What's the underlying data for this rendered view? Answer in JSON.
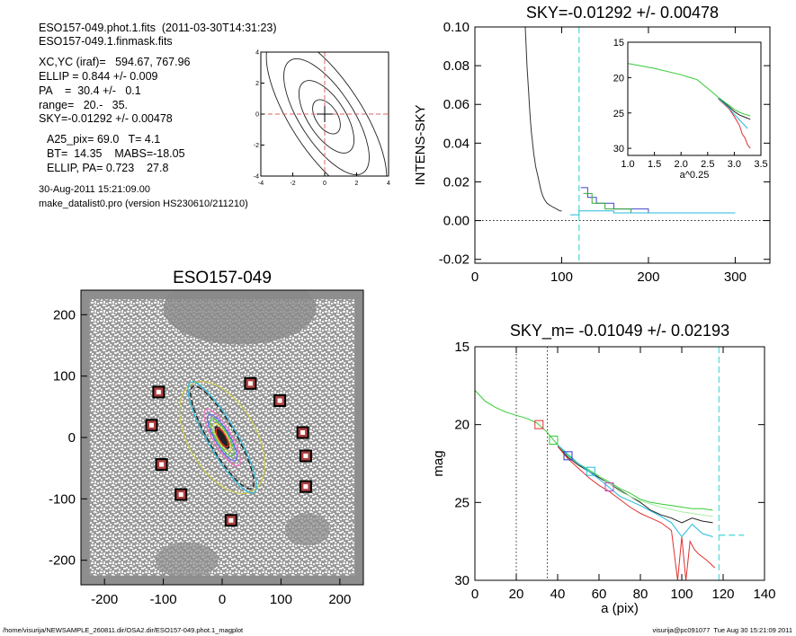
{
  "header_info": {
    "line1": "ESO157-049.phot.1.fits  (2011-03-30T14:31:23)",
    "line2": "ESO157-049.1.finmask.fits",
    "line3": "XC,YC (iraf)=   594.67, 767.96",
    "line4": "ELLIP = 0.844 +/- 0.009",
    "line5": "PA    =  30.4 +/-   0.1",
    "line6": "range=   20.-   35.",
    "line7": "SKY=-0.01292 +/- 0.00478",
    "line8": "A25_pix= 69.0   T= 4.1",
    "line9": "BT=  14.35    MABS=-18.05",
    "line10": "ELLIP, PA= 0.723    27.8",
    "date": "30-Aug-2011 15:21:09.00",
    "program": "make_datalist0.pro (version HS230610/211210)"
  },
  "footer": {
    "left": "/home/visurija/NEWSAMPLE_260811.dir/OSA2.dir/ESO157-049.phot.1_magplot",
    "right": "visurija@pc091077  Tue Aug 30 15:21:09 2011"
  },
  "chart_data": [
    {
      "type": "line",
      "name": "contour-inset",
      "xlim": [
        -4,
        4
      ],
      "ylim": [
        -4,
        4
      ],
      "xticks": [
        -4,
        -2,
        0,
        2,
        4
      ],
      "yticks": [
        -4,
        -2,
        0,
        2,
        4
      ],
      "contour_levels": [
        {
          "a": 1.2,
          "b": 0.7
        },
        {
          "a": 2.6,
          "b": 1.2
        },
        {
          "a": 4.2,
          "b": 1.7
        },
        {
          "a": 6.0,
          "b": 2.3
        }
      ],
      "center_marker": [
        0,
        0
      ],
      "colors": {
        "contour": "#222222",
        "crosshair": "#e06060"
      }
    },
    {
      "type": "line",
      "title": "SKY=-0.01292 +/- 0.00478",
      "xlabel": "",
      "ylabel": "INTENS-SKY",
      "xlim": [
        0,
        340
      ],
      "ylim": [
        -0.022,
        0.1
      ],
      "xticks": [
        0,
        100,
        200,
        300
      ],
      "yticks": [
        -0.02,
        0.0,
        0.02,
        0.04,
        0.06,
        0.08,
        0.1
      ],
      "ytick_labels": [
        "-0.02",
        "0.00",
        "0.02",
        "0.04",
        "0.06",
        "0.08",
        "0.10"
      ],
      "sky_line_x": 120,
      "series": [
        {
          "color": "#333333",
          "x": [
            58,
            60,
            62,
            63,
            64,
            65,
            66,
            67,
            68,
            69,
            70,
            72,
            74,
            76,
            78,
            80,
            83,
            86,
            90,
            94,
            98,
            100
          ],
          "y": [
            0.1,
            0.08,
            0.066,
            0.058,
            0.052,
            0.046,
            0.042,
            0.038,
            0.034,
            0.031,
            0.028,
            0.024,
            0.02,
            0.016,
            0.013,
            0.011,
            0.009,
            0.008,
            0.007,
            0.006,
            0.005,
            0.005
          ]
        },
        {
          "color": "#4444cc",
          "x": [
            122,
            130,
            130,
            140,
            140,
            160,
            160,
            200,
            200,
            300
          ],
          "y": [
            0.017,
            0.017,
            0.012,
            0.012,
            0.009,
            0.009,
            0.006,
            0.006,
            0.004,
            0.004
          ]
        },
        {
          "color": "#33aa33",
          "x": [
            125,
            135,
            135,
            150,
            150,
            180,
            180,
            300
          ],
          "y": [
            0.014,
            0.014,
            0.009,
            0.009,
            0.006,
            0.006,
            0.004,
            0.004
          ]
        },
        {
          "color": "#22bbdd",
          "x": [
            110,
            120,
            120,
            135,
            135,
            160,
            160,
            300
          ],
          "y": [
            0.003,
            0.003,
            0.005,
            0.005,
            0.005,
            0.005,
            0.004,
            0.004
          ]
        }
      ]
    },
    {
      "type": "line",
      "name": "profile-inset",
      "xlabel": "a^0.25",
      "xlim": [
        1.0,
        3.5
      ],
      "ylim": [
        15,
        31
      ],
      "xticks": [
        1.0,
        1.5,
        2.0,
        2.5,
        3.0,
        3.5
      ],
      "xtick_labels": [
        "1.0",
        "1.5",
        "2.0",
        "2.5",
        "3.0",
        "3.5"
      ],
      "yticks": [
        15,
        20,
        25,
        30
      ],
      "series": [
        {
          "color": "#33cc33",
          "x": [
            1.0,
            1.5,
            2.0,
            2.3,
            2.5,
            2.7,
            2.9,
            3.0,
            3.1,
            3.2,
            3.3
          ],
          "y": [
            18.0,
            18.7,
            19.6,
            20.3,
            21.5,
            22.8,
            23.9,
            24.5,
            24.9,
            25.2,
            25.4
          ]
        },
        {
          "color": "#222222",
          "x": [
            2.7,
            2.9,
            3.0,
            3.1,
            3.2,
            3.3
          ],
          "y": [
            22.9,
            24.1,
            24.8,
            25.3,
            25.6,
            25.9
          ]
        },
        {
          "color": "#e03030",
          "x": [
            2.7,
            2.9,
            3.0,
            3.1,
            3.15,
            3.2,
            3.25,
            3.3
          ],
          "y": [
            23.0,
            24.4,
            25.5,
            26.8,
            28.0,
            28.5,
            29.5,
            30.0
          ]
        },
        {
          "color": "#22bbdd",
          "x": [
            2.7,
            2.9,
            3.0,
            3.1,
            3.2,
            3.25
          ],
          "y": [
            22.9,
            24.3,
            25.2,
            26.0,
            26.8,
            27.2
          ]
        }
      ]
    },
    {
      "type": "scatter",
      "title": "ESO157-049",
      "xlim": [
        -240,
        240
      ],
      "ylim": [
        -240,
        240
      ],
      "xticks": [
        -200,
        -100,
        0,
        100,
        200
      ],
      "yticks": [
        -200,
        -100,
        0,
        100,
        200
      ],
      "mask_markers": [
        [
          48,
          88
        ],
        [
          -108,
          74
        ],
        [
          98,
          60
        ],
        [
          -120,
          20
        ],
        [
          137,
          8
        ],
        [
          142,
          -30
        ],
        [
          -103,
          -44
        ],
        [
          142,
          -80
        ],
        [
          -70,
          -93
        ],
        [
          15,
          -135
        ]
      ],
      "ellipses": [
        {
          "color": "#cccc44",
          "a": 105,
          "b": 55,
          "angle": 60
        },
        {
          "color": "#222222",
          "a": 100,
          "b": 22,
          "angle": 60
        },
        {
          "color": "#22bbdd",
          "a": 108,
          "b": 24,
          "angle": 60
        },
        {
          "color": "#ff66cc",
          "a": 55,
          "b": 15,
          "angle": 60
        },
        {
          "color": "#5566ff",
          "a": 45,
          "b": 12,
          "angle": 60
        },
        {
          "color": "#44cc44",
          "a": 36,
          "b": 10,
          "angle": 60
        },
        {
          "color": "#dddd33",
          "a": 27,
          "b": 8,
          "angle": 60
        },
        {
          "color": "#ff3333",
          "a": 18,
          "b": 6,
          "angle": 60
        }
      ]
    },
    {
      "type": "line",
      "title": "SKY_m= -0.01049 +/- 0.02193",
      "xlabel": "a (pix)",
      "ylabel": "mag",
      "xlim": [
        0,
        140
      ],
      "ylim": [
        15,
        30
      ],
      "xticks": [
        0,
        20,
        40,
        60,
        80,
        100,
        120,
        140
      ],
      "yticks": [
        15,
        20,
        25,
        30
      ],
      "vlines_dotted": [
        20,
        35
      ],
      "vline_dashed": 118,
      "sky_segment": {
        "x": [
          118,
          130
        ],
        "y": [
          27.1,
          27.1
        ]
      },
      "markers": [
        {
          "color": "#e03030",
          "x": 31,
          "y": 20.0
        },
        {
          "color": "#33cc33",
          "x": 38,
          "y": 21.0
        },
        {
          "color": "#3333cc",
          "x": 45,
          "y": 22.0
        },
        {
          "color": "#22bbdd",
          "x": 56,
          "y": 23.0
        },
        {
          "color": "#cc44cc",
          "x": 65,
          "y": 24.0
        }
      ],
      "series": [
        {
          "color": "#33cc33",
          "x": [
            0,
            5,
            10,
            15,
            20,
            25,
            30,
            35,
            40,
            45,
            50,
            55,
            60,
            65,
            70,
            75,
            80,
            85,
            90,
            95,
            100,
            105,
            110,
            115
          ],
          "y": [
            17.8,
            18.5,
            18.9,
            19.2,
            19.4,
            19.6,
            19.9,
            20.5,
            21.3,
            22.0,
            22.5,
            22.9,
            23.3,
            23.7,
            24.1,
            24.4,
            24.8,
            25.0,
            25.1,
            25.2,
            25.3,
            25.4,
            25.4,
            25.5
          ]
        },
        {
          "color": "#222222",
          "x": [
            40,
            45,
            50,
            55,
            60,
            65,
            70,
            75,
            80,
            85,
            90,
            95,
            100,
            105,
            110,
            115
          ],
          "y": [
            21.4,
            22.1,
            22.6,
            23.0,
            23.4,
            23.8,
            24.2,
            24.6,
            25.0,
            25.5,
            25.8,
            26.0,
            26.3,
            26.0,
            26.2,
            26.3
          ]
        },
        {
          "color": "#e03030",
          "x": [
            40,
            45,
            50,
            55,
            60,
            65,
            70,
            75,
            80,
            85,
            90,
            95,
            98,
            100,
            102,
            104,
            106,
            108,
            112,
            116
          ],
          "y": [
            21.4,
            22.2,
            22.8,
            23.4,
            23.9,
            24.3,
            24.8,
            25.3,
            25.7,
            26.0,
            26.3,
            26.8,
            30.0,
            27.2,
            30.0,
            27.5,
            28.0,
            28.3,
            28.7,
            29.2
          ]
        },
        {
          "color": "#22bbdd",
          "x": [
            40,
            50,
            60,
            70,
            80,
            90,
            95,
            100,
            105,
            110,
            115
          ],
          "y": [
            21.3,
            22.5,
            23.5,
            24.6,
            25.2,
            25.9,
            26.3,
            27.2,
            26.4,
            27.0,
            27.2
          ]
        },
        {
          "color": "#aaeeaa",
          "x": [
            60,
            70,
            80,
            90,
            100,
            110,
            115
          ],
          "y": [
            23.3,
            24.3,
            24.9,
            25.3,
            25.6,
            25.8,
            25.9
          ]
        }
      ]
    }
  ]
}
